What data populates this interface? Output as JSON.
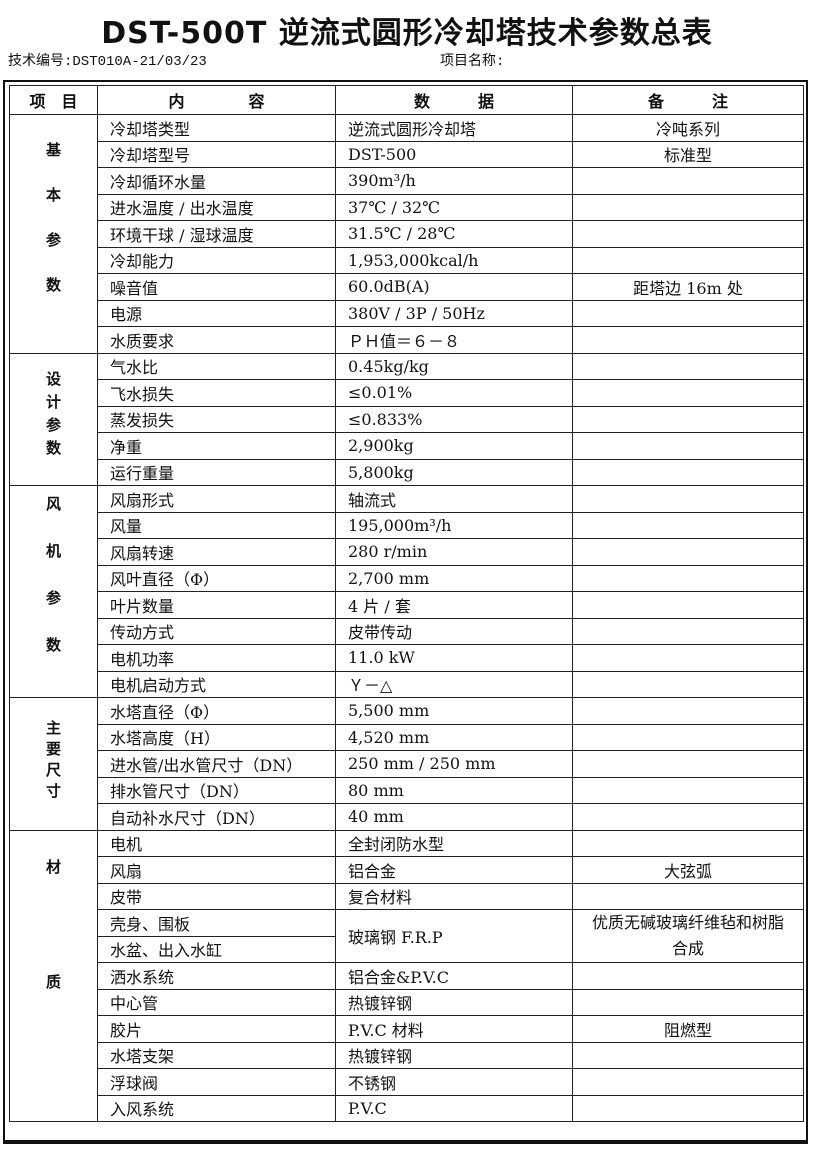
{
  "title": "DST-500T 逆流式圆形冷却塔技术参数总表",
  "tech_no": "技术编号:DST010A-21/03/23",
  "project_name": "项目名称:",
  "headers": [
    "项　目",
    "内　　　　容",
    "数　　　据",
    "备　　　注"
  ],
  "sections": [
    {
      "category": "基本参数",
      "spacing": 30,
      "rows": [
        {
          "item": "冷却塔类型",
          "value": "逆流式圆形冷却塔",
          "note": "冷吨系列"
        },
        {
          "item": "冷却塔型号",
          "value": "DST-500",
          "note": "标准型"
        },
        {
          "item": "冷却循环水量",
          "value": "390m³/h",
          "note": ""
        },
        {
          "item": "进水温度 / 出水温度",
          "value": "37℃ / 32℃",
          "note": ""
        },
        {
          "item": "环境干球 / 湿球温度",
          "value": "31.5℃ / 28℃",
          "note": ""
        },
        {
          "item": "冷却能力",
          "value": "1,953,000kcal/h",
          "note": ""
        },
        {
          "item": "噪音值",
          "value": "60.0dB(A)",
          "note": "距塔边 16m 处"
        },
        {
          "item": "电源",
          "value": "380V / 3P / 50Hz",
          "note": ""
        },
        {
          "item": "水质要求",
          "value": "ＰＨ值＝６－８",
          "note": ""
        }
      ]
    },
    {
      "category": "设计参数",
      "spacing": 8,
      "rows": [
        {
          "item": "气水比",
          "value": "0.45kg/kg",
          "note": ""
        },
        {
          "item": "飞水损失",
          "value": "≤0.01%",
          "note": ""
        },
        {
          "item": "蒸发损失",
          "value": "≤0.833%",
          "note": ""
        },
        {
          "item": "净重",
          "value": "2,900kg",
          "note": ""
        },
        {
          "item": "运行重量",
          "value": "5,800kg",
          "note": ""
        }
      ]
    },
    {
      "category": "风机参数",
      "spacing": 32,
      "rows": [
        {
          "item": "风扇形式",
          "value": "轴流式",
          "note": ""
        },
        {
          "item": "风量",
          "value": "195,000m³/h",
          "note": ""
        },
        {
          "item": "风扇转速",
          "value": "280 r/min",
          "note": ""
        },
        {
          "item": "风叶直径（Φ）",
          "value": "2,700 mm",
          "note": ""
        },
        {
          "item": "叶片数量",
          "value": "4 片 / 套",
          "note": ""
        },
        {
          "item": "传动方式",
          "value": "皮带传动",
          "note": ""
        },
        {
          "item": "电机功率",
          "value": "11.0 kW",
          "note": ""
        },
        {
          "item": "电机启动方式",
          "value": "Ｙ－△",
          "note": ""
        }
      ]
    },
    {
      "category": "主要尺寸",
      "spacing": 6,
      "rows": [
        {
          "item": "水塔直径（Φ）",
          "value": "5,500 mm",
          "note": ""
        },
        {
          "item": "水塔高度（H）",
          "value": "4,520 mm",
          "note": ""
        },
        {
          "item": "进水管/出水管尺寸（DN）",
          "value": "250 mm / 250 mm",
          "note": ""
        },
        {
          "item": "排水管尺寸（DN）",
          "value": "80 mm",
          "note": ""
        },
        {
          "item": "自动补水尺寸（DN）",
          "value": "40 mm",
          "note": ""
        }
      ]
    },
    {
      "category": "材质",
      "spacing": 100,
      "rows": [
        {
          "item": "电机",
          "value": "全封闭防水型",
          "note": ""
        },
        {
          "item": "风扇",
          "value": "铝合金",
          "note": "大弦弧"
        },
        {
          "item": "皮带",
          "value": "复合材料",
          "note": ""
        },
        {
          "item": "壳身、围板",
          "value": "玻璃钢 F.R.P",
          "note": "优质无碱玻璃纤维毡和树脂合成",
          "span": 2
        },
        {
          "item": "水盆、出入水缸",
          "merged": true
        },
        {
          "item": "洒水系统",
          "value": "铝合金&P.V.C",
          "note": ""
        },
        {
          "item": "中心管",
          "value": "热镀锌钢",
          "note": ""
        },
        {
          "item": "胶片",
          "value": "P.V.C 材料",
          "note": "阻燃型"
        },
        {
          "item": "水塔支架",
          "value": "热镀锌钢",
          "note": ""
        },
        {
          "item": "浮球阀",
          "value": "不锈钢",
          "note": ""
        },
        {
          "item": "入风系统",
          "value": "P.V.C",
          "note": ""
        }
      ]
    }
  ]
}
